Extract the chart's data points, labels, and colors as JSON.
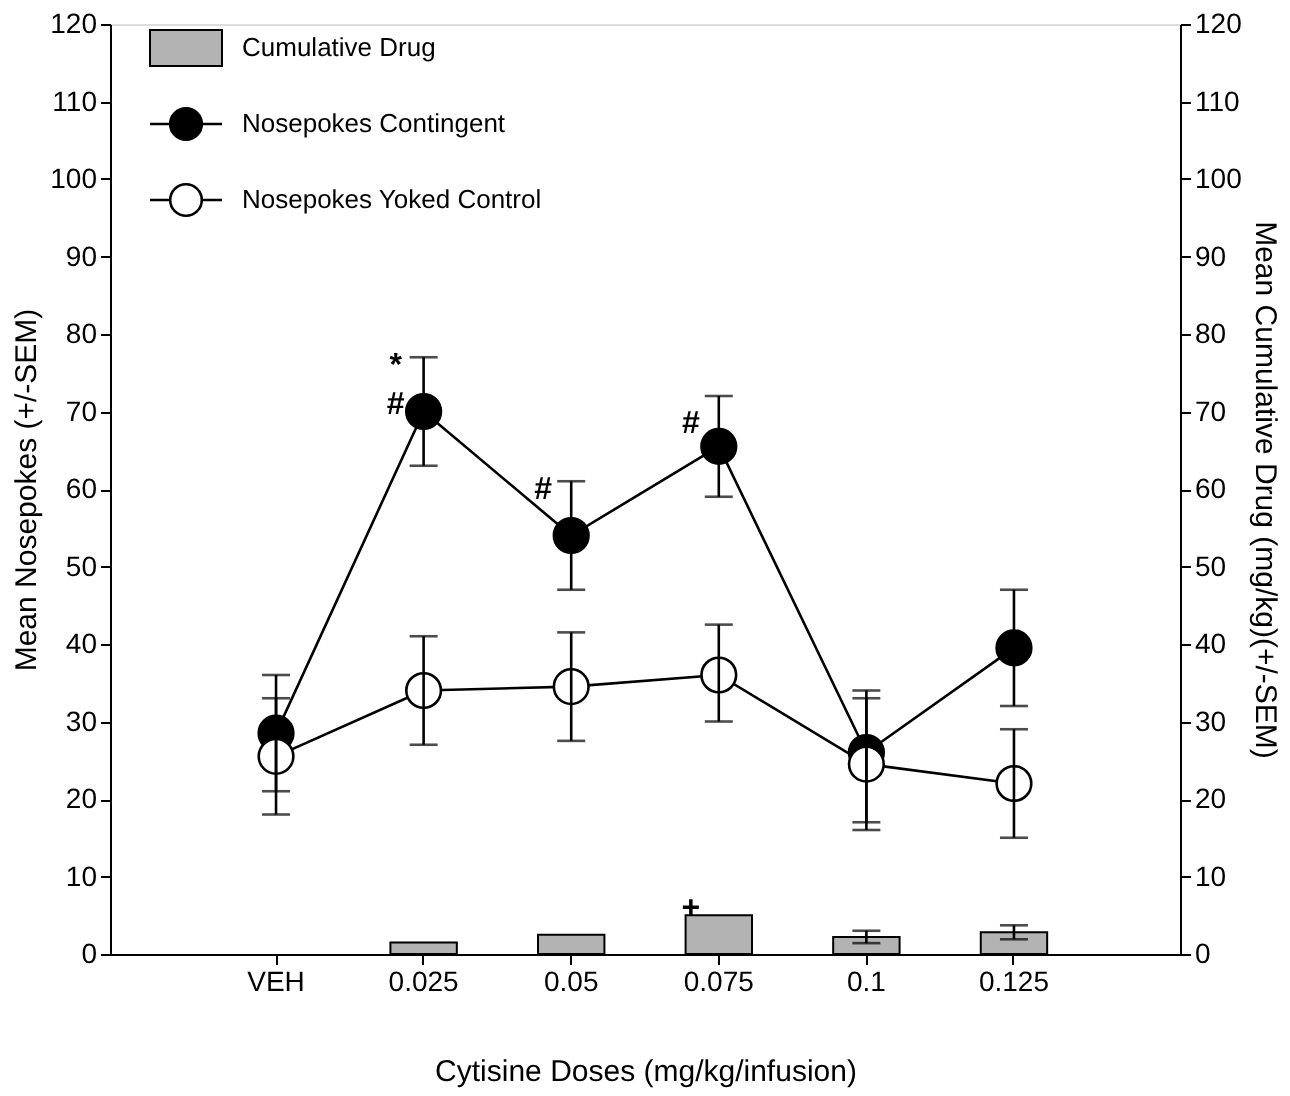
{
  "chart_data": {
    "type": "line",
    "xlabel": "Cytisine Doses (mg/kg/infusion)",
    "ylabel": "Mean Nosepokes (+/-SEM)",
    "y2label": "Mean Cumulative Drug (mg/kg)(+/-SEM)",
    "categories": [
      "VEH",
      "0.025",
      "0.05",
      "0.075",
      "0.1",
      "0.125"
    ],
    "series": [
      {
        "name": "Cumulative Drug",
        "type": "bar",
        "axis": "y2",
        "color": "#b3b3b3",
        "values": [
          null,
          1.5,
          2.5,
          5,
          2.2,
          2.8
        ],
        "errors": [
          null,
          null,
          null,
          null,
          [
            1.4,
            3.0
          ],
          [
            1.9,
            3.7
          ]
        ]
      },
      {
        "name": "Nosepokes Contingent",
        "color": "#000000",
        "values": [
          28.5,
          70,
          54,
          65.5,
          26,
          39.5
        ],
        "errors": [
          [
            21,
            36
          ],
          [
            63,
            77
          ],
          [
            47,
            61
          ],
          [
            59,
            72
          ],
          [
            17,
            34
          ],
          [
            32,
            47
          ]
        ]
      },
      {
        "name": "Nosepokes Yoked Control",
        "color": "#ffffff",
        "values": [
          25.5,
          34,
          34.5,
          36,
          24.5,
          22
        ],
        "errors": [
          [
            18,
            33
          ],
          [
            27,
            41
          ],
          [
            27.5,
            41.5
          ],
          [
            30,
            42.5
          ],
          [
            16,
            33
          ],
          [
            15,
            29
          ]
        ]
      }
    ],
    "ylim": [
      0,
      120
    ],
    "yticks": [
      0,
      10,
      20,
      30,
      40,
      50,
      60,
      70,
      80,
      90,
      100,
      110,
      120
    ],
    "y2lim": [
      0,
      120
    ],
    "y2ticks": [
      0,
      10,
      20,
      30,
      40,
      50,
      60,
      70,
      80,
      90,
      100,
      110,
      120
    ],
    "annotations": [
      {
        "text": "*",
        "x": "0.025",
        "y": 76
      },
      {
        "text": "#",
        "x": "0.025",
        "y": 71
      },
      {
        "text": "#",
        "x": "0.05",
        "y": 60
      },
      {
        "text": "#",
        "x": "0.075",
        "y": 68.5
      },
      {
        "text": "+",
        "x": "0.075",
        "y": 6
      }
    ],
    "marker": "circle",
    "line_style": "solid",
    "grid": false,
    "legend": "top left"
  }
}
